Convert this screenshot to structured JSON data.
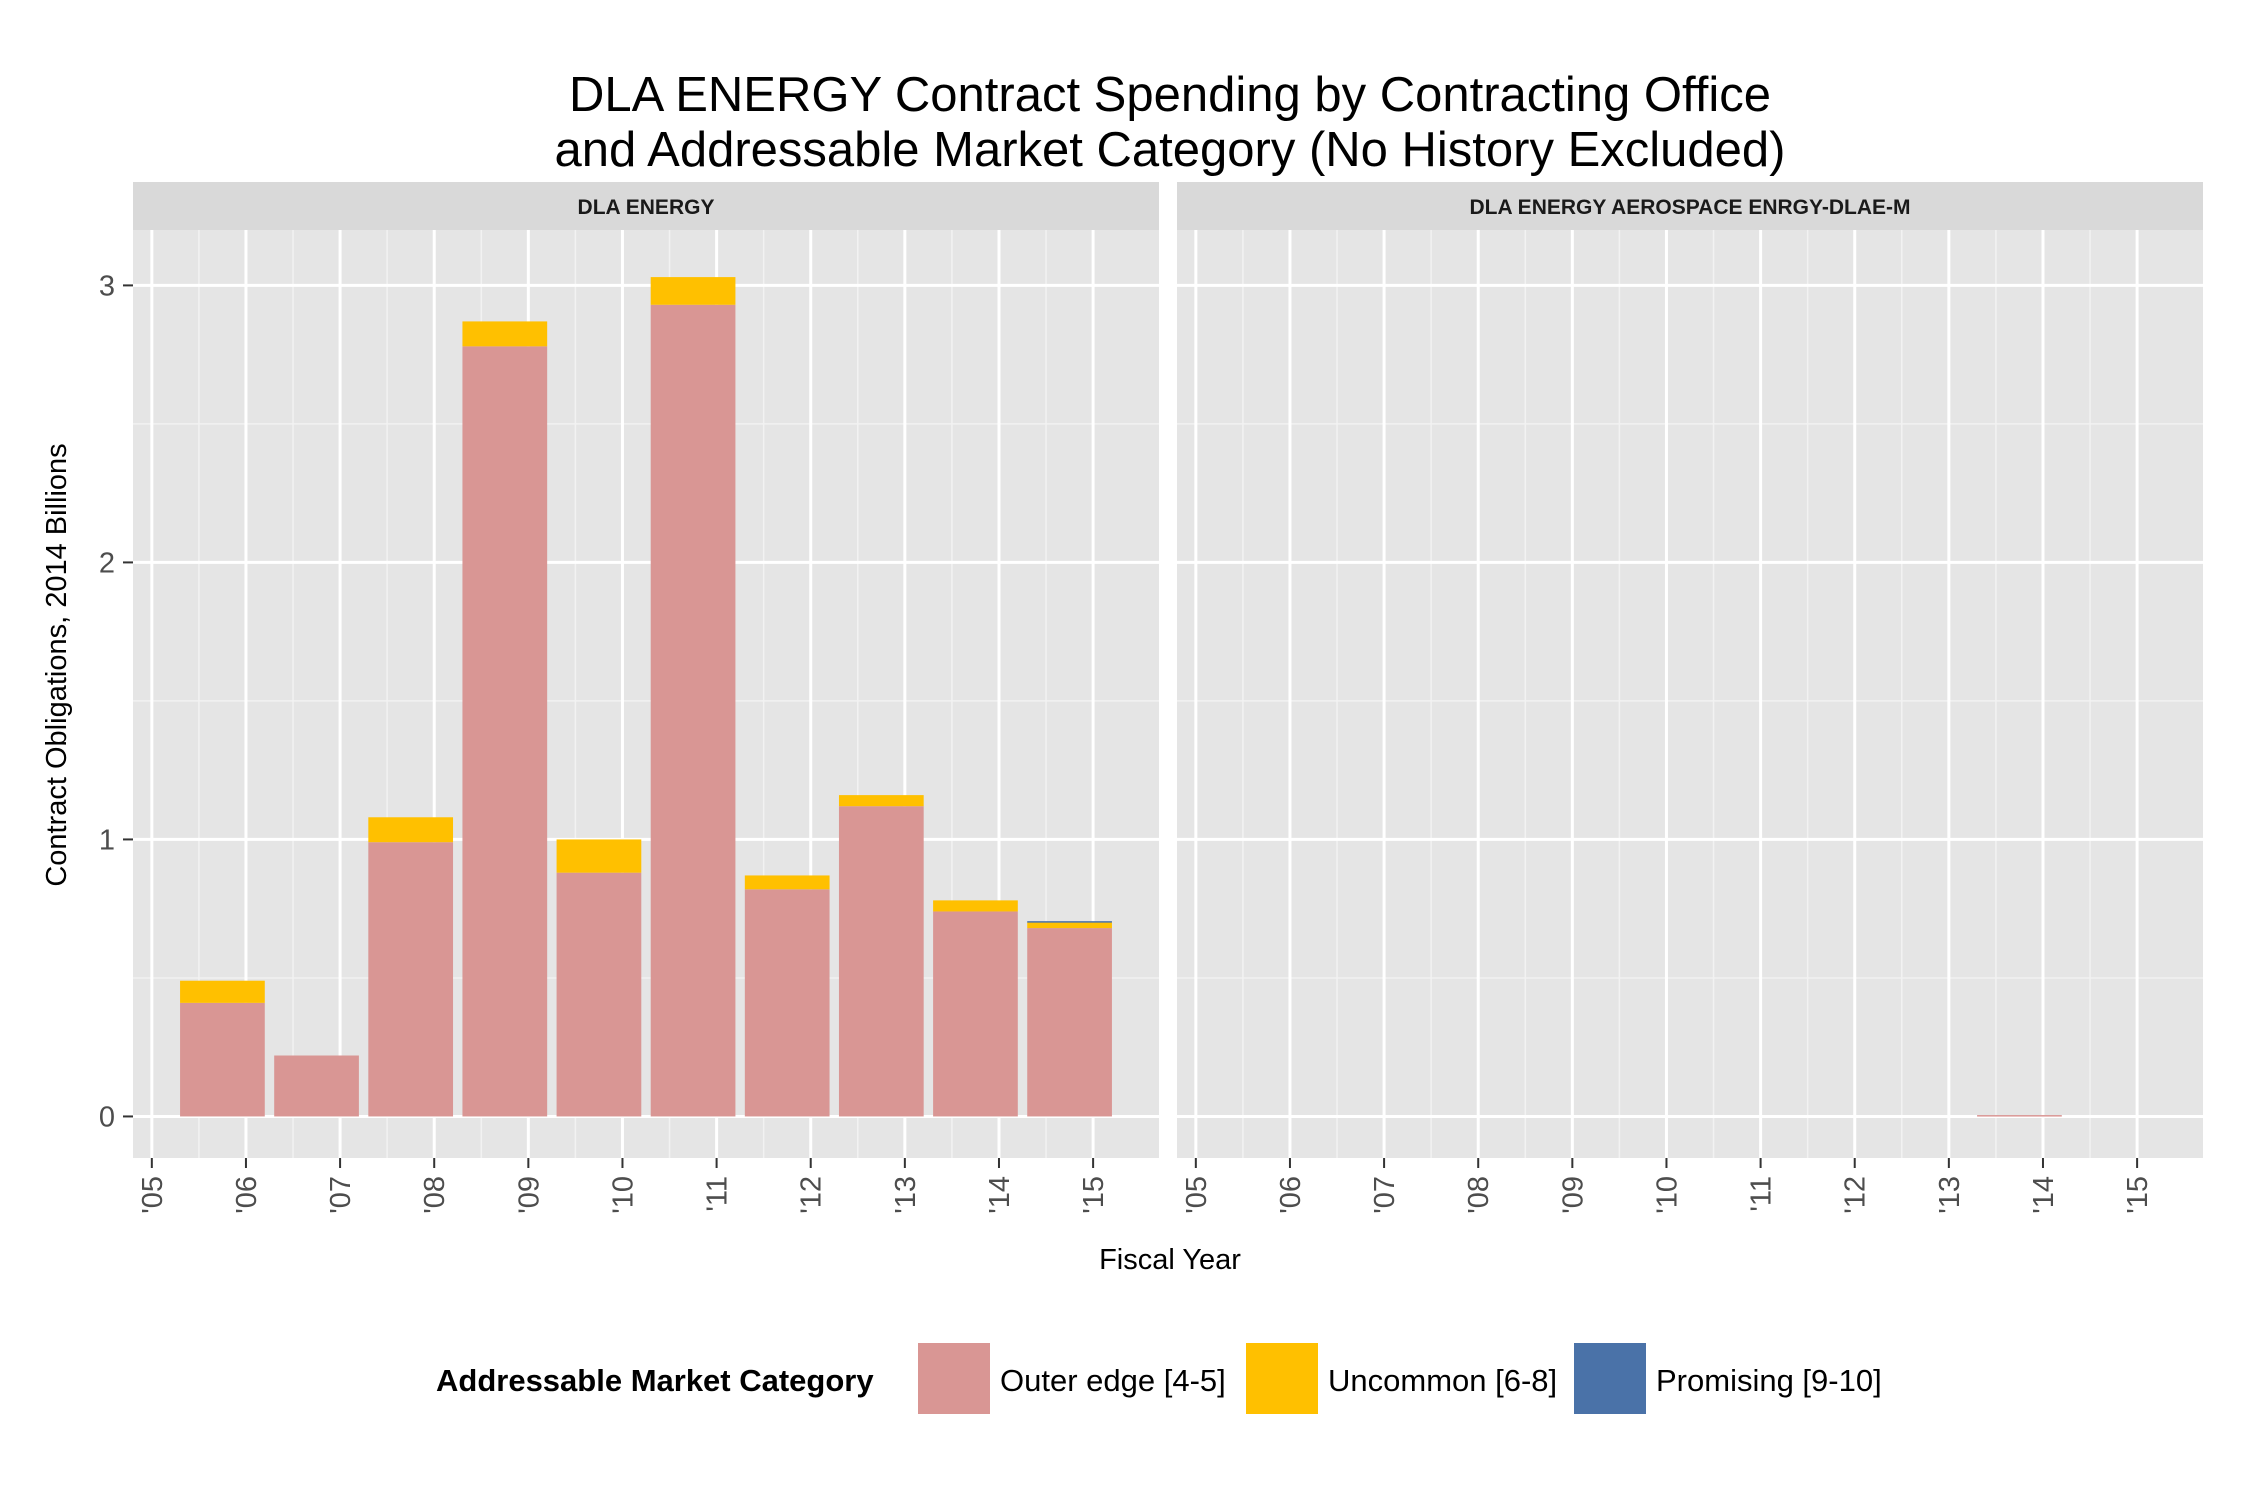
{
  "chart_data": {
    "type": "bar",
    "stacked": true,
    "title_line1": "DLA ENERGY Contract Spending by Contracting Office",
    "title_line2": "and Addressable Market Category (No History Excluded)",
    "xlabel": "Fiscal Year",
    "ylabel": "Contract Obligations, 2014 Billions",
    "ylim": [
      -0.15,
      3.2
    ],
    "yticks": [
      0,
      1,
      2,
      3
    ],
    "ytick_labels": [
      "0",
      "1",
      "2",
      "3"
    ],
    "x_tick_labels": [
      "'05",
      "'06",
      "'07",
      "'08",
      "'09",
      "'10",
      "'11",
      "'12",
      "'13",
      "'14",
      "'15"
    ],
    "x_tick_values": [
      2005,
      2006,
      2007,
      2008,
      2009,
      2010,
      2011,
      2012,
      2013,
      2014,
      2015
    ],
    "xlim": [
      2004.8,
      2015.7
    ],
    "grid": true,
    "legend": {
      "position": "bottom",
      "title": "Addressable Market Category",
      "entries": [
        "Outer edge [4-5]",
        "Uncommon [6-8]",
        "Promising [9-10]"
      ]
    },
    "series_colors": [
      "#d99694",
      "#ffc000",
      "#4a72a8"
    ],
    "panels": [
      {
        "name": "DLA ENERGY",
        "bars": [
          {
            "x": 2005.75,
            "values": [
              0.41,
              0.08,
              0
            ]
          },
          {
            "x": 2006.75,
            "values": [
              0.22,
              0,
              0
            ]
          },
          {
            "x": 2007.75,
            "values": [
              0.99,
              0.09,
              0
            ]
          },
          {
            "x": 2008.75,
            "values": [
              2.78,
              0.09,
              0
            ]
          },
          {
            "x": 2009.75,
            "values": [
              0.88,
              0.12,
              0
            ]
          },
          {
            "x": 2010.75,
            "values": [
              2.93,
              0.1,
              0
            ]
          },
          {
            "x": 2011.75,
            "values": [
              0.82,
              0.05,
              0
            ]
          },
          {
            "x": 2012.75,
            "values": [
              1.12,
              0.04,
              0
            ]
          },
          {
            "x": 2013.75,
            "values": [
              0.74,
              0.04,
              0
            ]
          },
          {
            "x": 2014.75,
            "values": [
              0.68,
              0.02,
              0.005
            ]
          }
        ]
      },
      {
        "name": "DLA ENERGY AEROSPACE ENRGY-DLAE-M",
        "bars": [
          {
            "x": 2013.75,
            "values": [
              0.005,
              0,
              0
            ]
          }
        ]
      }
    ]
  }
}
